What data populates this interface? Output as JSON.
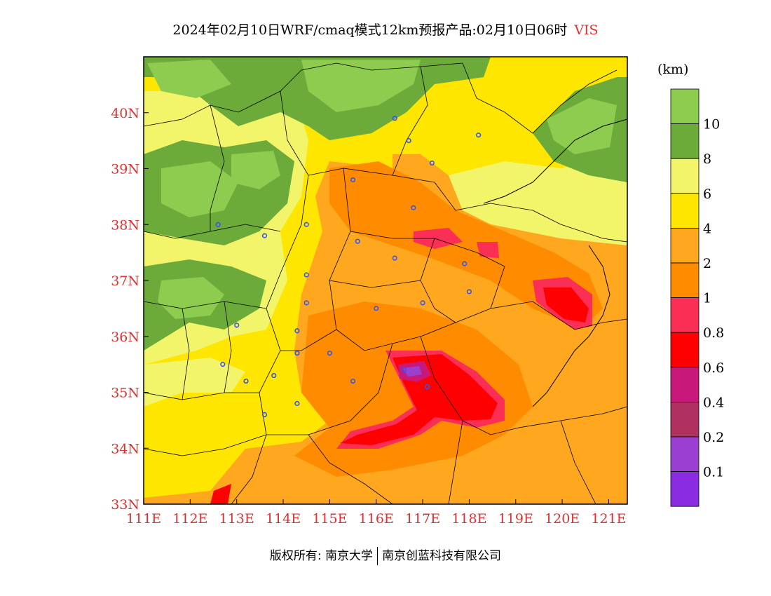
{
  "title": {
    "main": "2024年02月10日WRF/cmaq模式12km预报产品:02月10日06时",
    "variable": "VIS"
  },
  "colors": {
    "axis_label": "#e0302f",
    "levels": [
      "#8b2be2",
      "#9b3fd0",
      "#b0305f",
      "#c8197a",
      "#ff0000",
      "#fb2f55",
      "#ff8c00",
      "#ffa81f",
      "#ffe600",
      "#f2f56a",
      "#6cab3a",
      "#8dcc4f"
    ]
  },
  "legend": {
    "unit": "(km)",
    "labels": [
      "10",
      "8",
      "6",
      "4",
      "2",
      "1",
      "0.8",
      "0.6",
      "0.4",
      "0.2",
      "0.1"
    ]
  },
  "axes": {
    "x_ticks": [
      "111E",
      "112E",
      "113E",
      "114E",
      "115E",
      "116E",
      "117E",
      "118E",
      "119E",
      "120E",
      "121E"
    ],
    "y_ticks": [
      "40N",
      "39N",
      "38N",
      "37N",
      "36N",
      "35N",
      "34N",
      "33N"
    ],
    "lon_range": [
      111,
      121.4
    ],
    "lat_range": [
      33,
      41
    ]
  },
  "stations": [
    [
      116.4,
      39.9
    ],
    [
      116.7,
      39.5
    ],
    [
      117.2,
      39.1
    ],
    [
      118.2,
      39.6
    ],
    [
      115.5,
      38.8
    ],
    [
      116.8,
      38.3
    ],
    [
      112.6,
      38.0
    ],
    [
      113.6,
      37.8
    ],
    [
      114.5,
      38.0
    ],
    [
      115.6,
      37.7
    ],
    [
      116.4,
      37.4
    ],
    [
      117.9,
      37.3
    ],
    [
      114.5,
      37.1
    ],
    [
      117.0,
      36.6
    ],
    [
      118.0,
      36.8
    ],
    [
      114.5,
      36.6
    ],
    [
      116.0,
      36.5
    ],
    [
      114.3,
      36.1
    ],
    [
      113.0,
      36.2
    ],
    [
      114.3,
      35.7
    ],
    [
      115.0,
      35.7
    ],
    [
      112.7,
      35.5
    ],
    [
      113.2,
      35.2
    ],
    [
      113.8,
      35.3
    ],
    [
      115.5,
      35.2
    ],
    [
      116.6,
      35.4
    ],
    [
      117.1,
      35.1
    ],
    [
      114.3,
      34.8
    ],
    [
      113.6,
      34.6
    ]
  ],
  "credit": {
    "left": "版权所有: 南京大学",
    "right": "南京创蓝科技有限公司"
  }
}
